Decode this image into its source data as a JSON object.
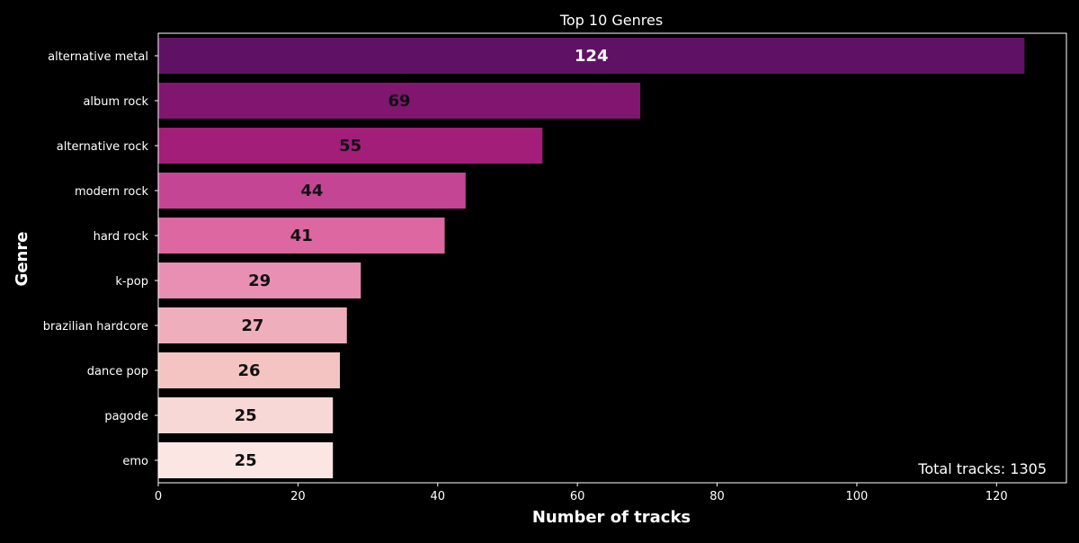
{
  "chart_data": {
    "type": "bar",
    "orientation": "horizontal",
    "title": "Top 10 Genres",
    "xlabel": "Number of tracks",
    "ylabel": "Genre",
    "categories": [
      "alternative metal",
      "album rock",
      "alternative rock",
      "modern rock",
      "hard rock",
      "k-pop",
      "brazilian hardcore",
      "dance pop",
      "pagode",
      "emo"
    ],
    "values": [
      124,
      69,
      55,
      44,
      41,
      29,
      27,
      26,
      25,
      25
    ],
    "bar_colors": [
      "#5f1264",
      "#80166f",
      "#a21e79",
      "#c44594",
      "#dc67a1",
      "#e88fb3",
      "#efaebc",
      "#f4c4c3",
      "#f7d8d6",
      "#fbe6e4"
    ],
    "label_colors": [
      "#ffffff",
      "#111111",
      "#111111",
      "#111111",
      "#111111",
      "#111111",
      "#111111",
      "#111111",
      "#111111",
      "#111111"
    ],
    "xlim": [
      0,
      130
    ],
    "xticks": [
      0,
      20,
      40,
      60,
      80,
      100,
      120
    ],
    "grid": false,
    "annotation": "Total tracks: 1305",
    "background": "#000000",
    "foreground": "#ffffff"
  }
}
